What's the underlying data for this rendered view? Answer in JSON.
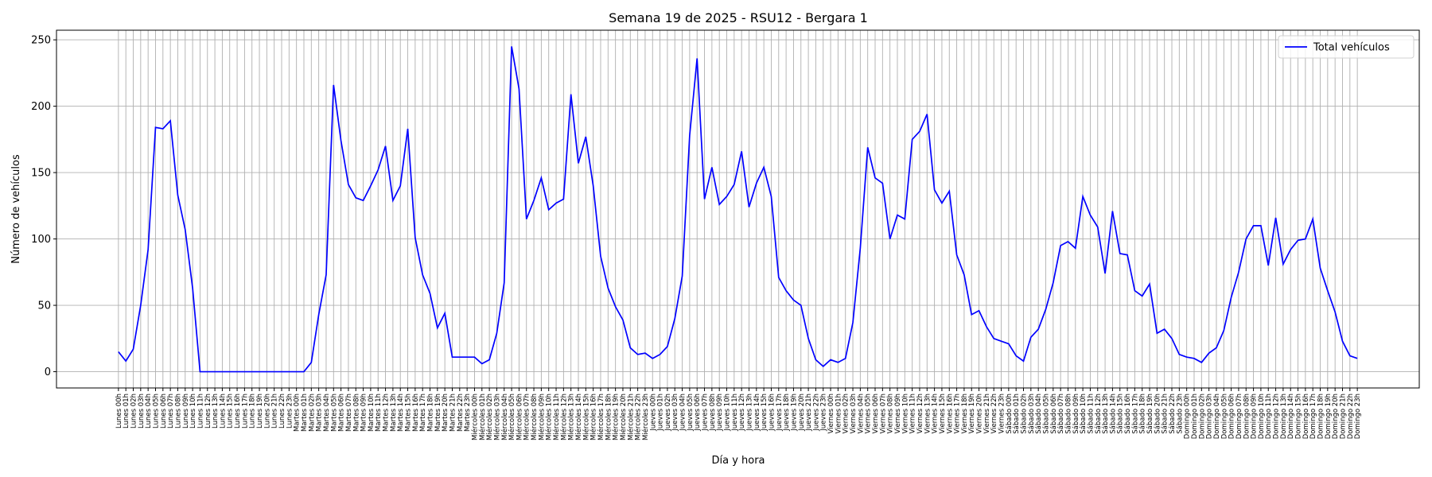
{
  "chart_data": {
    "type": "line",
    "title": "Semana 19 de 2025 - RSU12 - Bergara 1",
    "xlabel": "Día y hora",
    "ylabel": "Número de vehículos",
    "categories": [
      "Lunes 00h",
      "Lunes 01h",
      "Lunes 02h",
      "Lunes 03h",
      "Lunes 04h",
      "Lunes 05h",
      "Lunes 06h",
      "Lunes 07h",
      "Lunes 08h",
      "Lunes 09h",
      "Lunes 10h",
      "Lunes 11h",
      "Lunes 12h",
      "Lunes 13h",
      "Lunes 14h",
      "Lunes 15h",
      "Lunes 16h",
      "Lunes 17h",
      "Lunes 18h",
      "Lunes 19h",
      "Lunes 20h",
      "Lunes 21h",
      "Lunes 22h",
      "Lunes 23h",
      "Martes 00h",
      "Martes 01h",
      "Martes 02h",
      "Martes 03h",
      "Martes 04h",
      "Martes 05h",
      "Martes 06h",
      "Martes 07h",
      "Martes 08h",
      "Martes 09h",
      "Martes 10h",
      "Martes 11h",
      "Martes 12h",
      "Martes 13h",
      "Martes 14h",
      "Martes 15h",
      "Martes 16h",
      "Martes 17h",
      "Martes 18h",
      "Martes 19h",
      "Martes 20h",
      "Martes 21h",
      "Martes 22h",
      "Martes 23h",
      "Miércoles 00h",
      "Miércoles 01h",
      "Miércoles 02h",
      "Miércoles 03h",
      "Miércoles 04h",
      "Miércoles 05h",
      "Miércoles 06h",
      "Miércoles 07h",
      "Miércoles 08h",
      "Miércoles 09h",
      "Miércoles 10h",
      "Miércoles 11h",
      "Miércoles 12h",
      "Miércoles 13h",
      "Miércoles 14h",
      "Miércoles 15h",
      "Miércoles 16h",
      "Miércoles 17h",
      "Miércoles 18h",
      "Miércoles 19h",
      "Miércoles 20h",
      "Miércoles 21h",
      "Miércoles 22h",
      "Miércoles 23h",
      "Jueves 00h",
      "Jueves 01h",
      "Jueves 02h",
      "Jueves 03h",
      "Jueves 04h",
      "Jueves 05h",
      "Jueves 06h",
      "Jueves 07h",
      "Jueves 08h",
      "Jueves 09h",
      "Jueves 10h",
      "Jueves 11h",
      "Jueves 12h",
      "Jueves 13h",
      "Jueves 14h",
      "Jueves 15h",
      "Jueves 16h",
      "Jueves 17h",
      "Jueves 18h",
      "Jueves 19h",
      "Jueves 20h",
      "Jueves 21h",
      "Jueves 22h",
      "Jueves 23h",
      "Viernes 00h",
      "Viernes 01h",
      "Viernes 02h",
      "Viernes 03h",
      "Viernes 04h",
      "Viernes 05h",
      "Viernes 06h",
      "Viernes 07h",
      "Viernes 08h",
      "Viernes 09h",
      "Viernes 10h",
      "Viernes 11h",
      "Viernes 12h",
      "Viernes 13h",
      "Viernes 14h",
      "Viernes 15h",
      "Viernes 16h",
      "Viernes 17h",
      "Viernes 18h",
      "Viernes 19h",
      "Viernes 20h",
      "Viernes 21h",
      "Viernes 22h",
      "Viernes 23h",
      "Sábado 00h",
      "Sábado 01h",
      "Sábado 02h",
      "Sábado 03h",
      "Sábado 04h",
      "Sábado 05h",
      "Sábado 06h",
      "Sábado 07h",
      "Sábado 08h",
      "Sábado 09h",
      "Sábado 10h",
      "Sábado 11h",
      "Sábado 12h",
      "Sábado 13h",
      "Sábado 14h",
      "Sábado 15h",
      "Sábado 16h",
      "Sábado 17h",
      "Sábado 18h",
      "Sábado 19h",
      "Sábado 20h",
      "Sábado 21h",
      "Sábado 22h",
      "Sábado 23h",
      "Domingo 00h",
      "Domingo 01h",
      "Domingo 02h",
      "Domingo 03h",
      "Domingo 04h",
      "Domingo 05h",
      "Domingo 06h",
      "Domingo 07h",
      "Domingo 08h",
      "Domingo 09h",
      "Domingo 10h",
      "Domingo 11h",
      "Domingo 12h",
      "Domingo 13h",
      "Domingo 14h",
      "Domingo 15h",
      "Domingo 16h",
      "Domingo 17h",
      "Domingo 18h",
      "Domingo 19h",
      "Domingo 20h",
      "Domingo 21h",
      "Domingo 22h",
      "Domingo 23h"
    ],
    "series": [
      {
        "name": "Total vehículos",
        "color": "#0000ff",
        "values": [
          15,
          8,
          17,
          50,
          92,
          184,
          183,
          189,
          133,
          107,
          63,
          0,
          0,
          0,
          0,
          0,
          0,
          0,
          0,
          0,
          0,
          0,
          0,
          0,
          0,
          0,
          7,
          43,
          73,
          216,
          174,
          141,
          131,
          129,
          140,
          152,
          170,
          129,
          140,
          183,
          101,
          73,
          59,
          33,
          44,
          11,
          11,
          11,
          11,
          6,
          9,
          29,
          67,
          245,
          213,
          115,
          129,
          146,
          122,
          127,
          130,
          209,
          157,
          177,
          140,
          87,
          63,
          49,
          39,
          18,
          13,
          14,
          10,
          13,
          19,
          40,
          72,
          178,
          236,
          130,
          154,
          126,
          132,
          141,
          166,
          124,
          142,
          154,
          132,
          71,
          61,
          54,
          50,
          25,
          9,
          4,
          9,
          7,
          10,
          37,
          93,
          169,
          146,
          142,
          100,
          118,
          115,
          175,
          181,
          194,
          137,
          127,
          136,
          88,
          73,
          43,
          46,
          34,
          25,
          23,
          21,
          12,
          8,
          26,
          32,
          47,
          67,
          95,
          98,
          93,
          132,
          118,
          109,
          74,
          121,
          89,
          88,
          61,
          57,
          66,
          29,
          32,
          25,
          13,
          11,
          10,
          7,
          14,
          18,
          31,
          56,
          75,
          100,
          110,
          110,
          80,
          116,
          81,
          92,
          99,
          100,
          115,
          78,
          61,
          45,
          23,
          12,
          10
        ]
      }
    ],
    "ylim": [
      -12.25,
      257.25
    ],
    "yticks": [
      0,
      50,
      100,
      150,
      200,
      250
    ],
    "grid": true,
    "legend": "upper right"
  }
}
